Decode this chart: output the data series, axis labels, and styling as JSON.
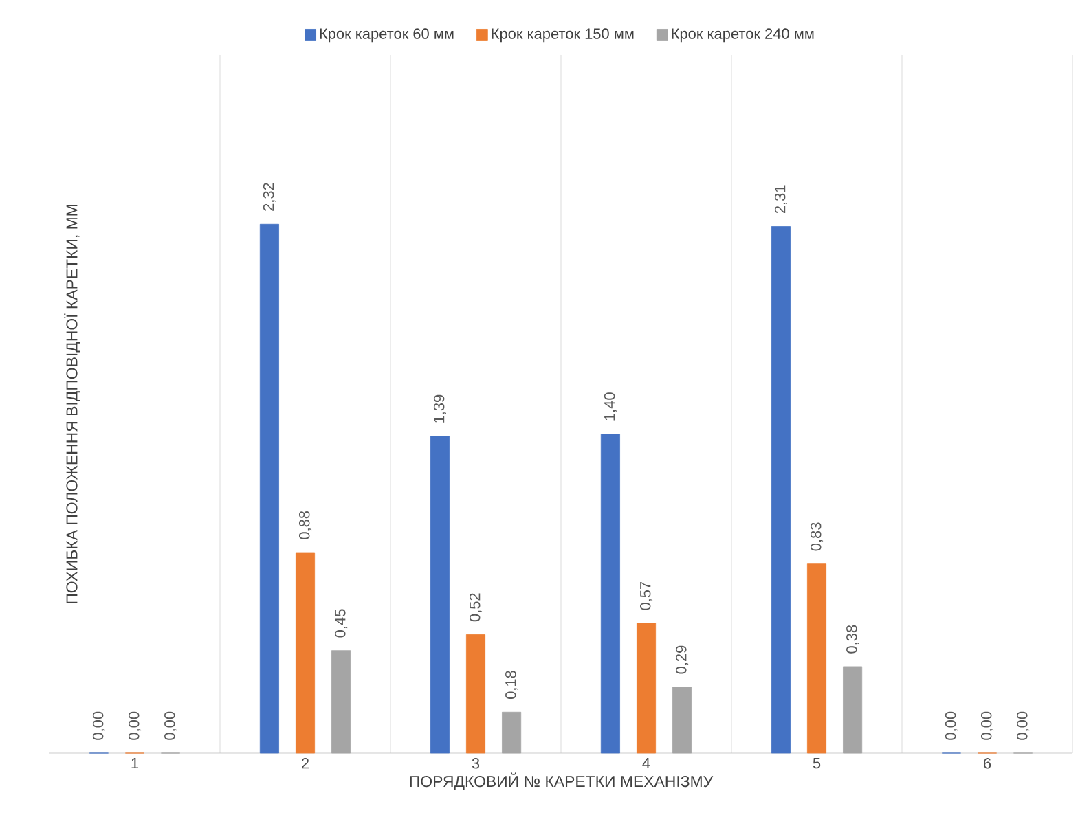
{
  "chart_data": {
    "type": "bar",
    "xlabel": "ПОРЯДКОВИЙ № КАРЕТКИ МЕХАНІЗМУ",
    "ylabel": "ПОХИБКА ПОЛОЖЕННЯ ВІДПОВІДНОЇ КАРЕТКИ, ММ",
    "categories": [
      "1",
      "2",
      "3",
      "4",
      "5",
      "6"
    ],
    "series": [
      {
        "name": "Крок кареток 60 мм",
        "color": "#4472c4",
        "values": [
          0.0,
          2.32,
          1.39,
          1.4,
          2.31,
          0.0
        ],
        "value_labels": [
          "0,00",
          "2,32",
          "1,39",
          "1,40",
          "2,31",
          "0,00"
        ]
      },
      {
        "name": "Крок кареток 150 мм",
        "color": "#ed7d31",
        "values": [
          0.0,
          0.88,
          0.52,
          0.57,
          0.83,
          0.0
        ],
        "value_labels": [
          "0,00",
          "0,88",
          "0,52",
          "0,57",
          "0,83",
          "0,00"
        ]
      },
      {
        "name": "Крок кареток 240 мм",
        "color": "#a5a5a5",
        "values": [
          0.0,
          0.45,
          0.18,
          0.29,
          0.38,
          0.0
        ],
        "value_labels": [
          "0,00",
          "0,45",
          "0,18",
          "0,29",
          "0,38",
          "0,00"
        ]
      }
    ],
    "grid": "x",
    "legend": "top"
  }
}
